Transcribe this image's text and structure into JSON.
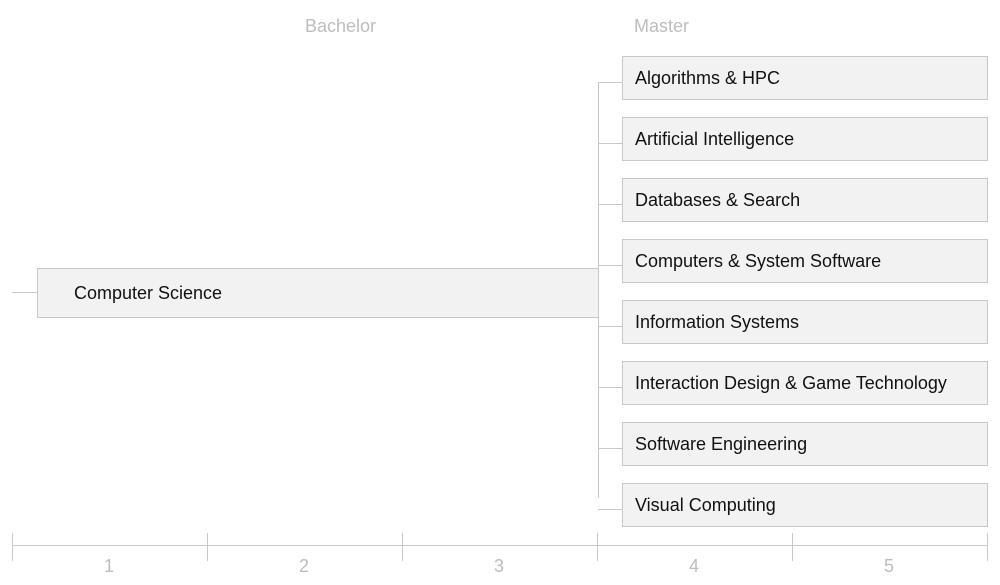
{
  "headers": {
    "bachelor": "Bachelor",
    "master": "Master"
  },
  "root": "Computer Science",
  "master_programs": [
    "Algorithms & HPC",
    "Artificial Intelligence",
    "Databases & Search",
    "Computers & System Software",
    "Information Systems",
    "Interaction Design & Game Technology",
    "Software Engineering",
    "Visual Computing"
  ],
  "axis": [
    "1",
    "2",
    "3",
    "4",
    "5"
  ]
}
